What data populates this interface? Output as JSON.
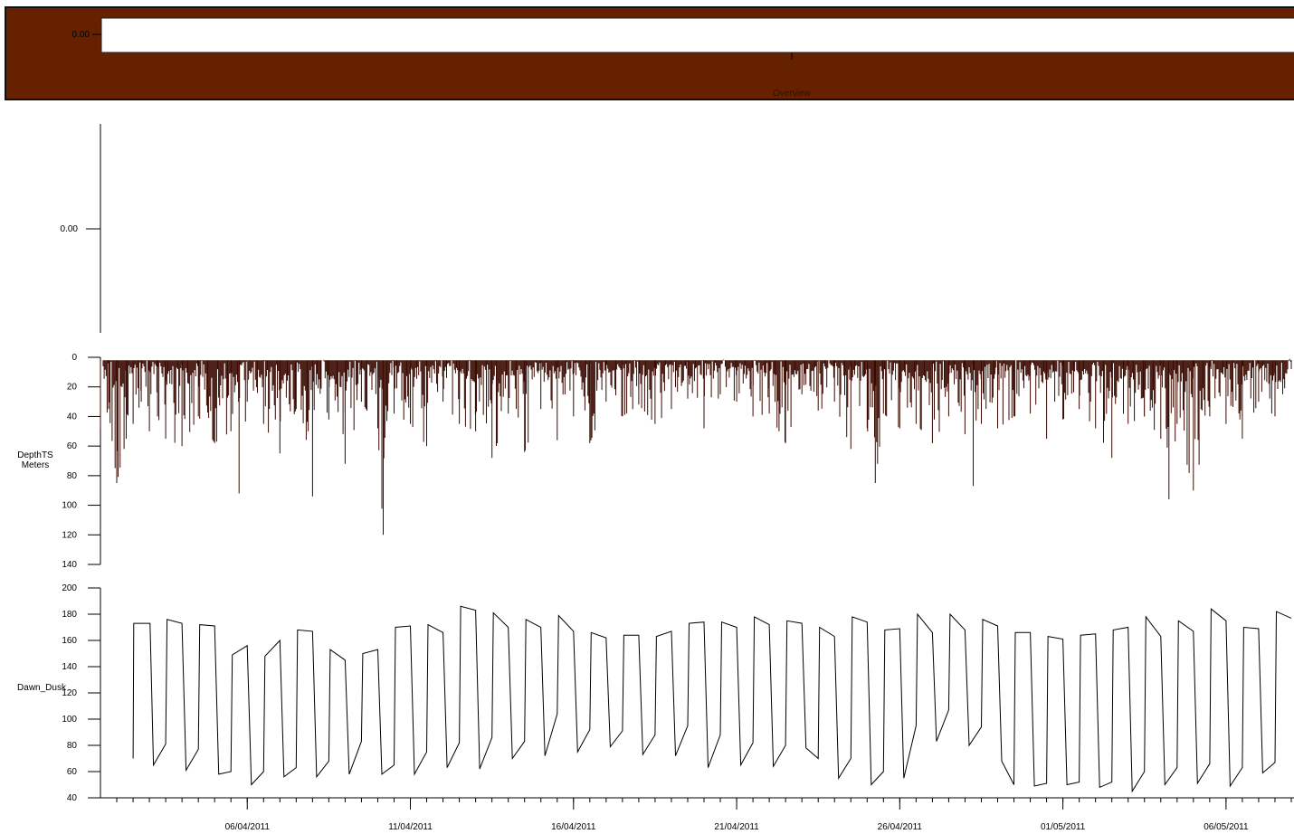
{
  "overview": {
    "title": "Overview",
    "y_tick": "0.00",
    "colors": {
      "band": "#662200",
      "window": "#ffffff",
      "border": "#111111"
    }
  },
  "x_axis": {
    "tick_labels": [
      "06/04/2011",
      "11/04/2011",
      "16/04/2011",
      "21/04/2011",
      "26/04/2011",
      "01/05/2011",
      "06/05/2011"
    ],
    "range": [
      "2011-04-01T12:00",
      "2011-05-08T02:00"
    ]
  },
  "chart_data": [
    {
      "type": "line",
      "name": "empty-panel",
      "y_ticks": [
        "0.00"
      ],
      "ylabel": "",
      "series": []
    },
    {
      "type": "line",
      "name": "DepthTS",
      "ylabel": "DepthTS\nMeters",
      "ylabel_lines": [
        "DepthTS",
        "Meters"
      ],
      "ylim": [
        0,
        140
      ],
      "y_inverted": true,
      "y_ticks": [
        0,
        20,
        40,
        60,
        80,
        100,
        120,
        140
      ],
      "color": "#3a0a00",
      "series": [
        {
          "description": "dense dive-depth trace; sampled envelope of maximum depths",
          "x": [
            "2011-04-01T12:00",
            "2011-04-01T18:00",
            "2011-04-02T00:00",
            "2011-04-02T07:00",
            "2011-04-02T12:00",
            "2011-04-02T18:00",
            "2011-04-03T00:00",
            "2011-04-03T06:00",
            "2011-04-03T12:00",
            "2011-04-04T00:00",
            "2011-04-04T12:00",
            "2011-04-05T00:00",
            "2011-04-05T12:00",
            "2011-04-05T18:00",
            "2011-04-06T00:00",
            "2011-04-06T12:00",
            "2011-04-07T00:00",
            "2011-04-07T12:00",
            "2011-04-08T00:00",
            "2011-04-08T06:00",
            "2011-04-08T12:00",
            "2011-04-09T00:00",
            "2011-04-09T12:00",
            "2011-04-10T00:00",
            "2011-04-10T04:00",
            "2011-04-10T12:00",
            "2011-04-11T00:00",
            "2011-04-11T12:00",
            "2011-04-12T00:00",
            "2011-04-12T12:00",
            "2011-04-13T00:00",
            "2011-04-13T12:00",
            "2011-04-14T00:00",
            "2011-04-14T12:00",
            "2011-04-15T00:00",
            "2011-04-15T12:00",
            "2011-04-16T00:00",
            "2011-04-16T12:00",
            "2011-04-17T00:00",
            "2011-04-17T12:00",
            "2011-04-18T00:00",
            "2011-04-18T12:00",
            "2011-04-19T00:00",
            "2011-04-19T12:00",
            "2011-04-20T00:00",
            "2011-04-20T12:00",
            "2011-04-21T00:00",
            "2011-04-21T12:00",
            "2011-04-22T00:00",
            "2011-04-22T12:00",
            "2011-04-23T00:00",
            "2011-04-23T12:00",
            "2011-04-24T00:00",
            "2011-04-24T12:00",
            "2011-04-25T00:00",
            "2011-04-25T06:00",
            "2011-04-25T12:00",
            "2011-04-26T00:00",
            "2011-04-26T12:00",
            "2011-04-27T00:00",
            "2011-04-27T12:00",
            "2011-04-28T00:00",
            "2011-04-28T06:00",
            "2011-04-28T12:00",
            "2011-04-29T00:00",
            "2011-04-29T12:00",
            "2011-04-30T00:00",
            "2011-04-30T12:00",
            "2011-05-01T00:00",
            "2011-05-01T12:00",
            "2011-05-02T00:00",
            "2011-05-02T12:00",
            "2011-05-03T00:00",
            "2011-05-03T12:00",
            "2011-05-04T00:00",
            "2011-05-04T06:00",
            "2011-05-04T12:00",
            "2011-05-05T00:00",
            "2011-05-05T12:00",
            "2011-05-06T00:00",
            "2011-05-06T12:00",
            "2011-05-07T00:00",
            "2011-05-07T12:00",
            "2011-05-08T00:00"
          ],
          "y": [
            48,
            35,
            85,
            55,
            45,
            30,
            50,
            40,
            55,
            60,
            40,
            58,
            50,
            92,
            30,
            45,
            65,
            35,
            94,
            20,
            42,
            72,
            30,
            48,
            120,
            38,
            45,
            60,
            30,
            45,
            50,
            68,
            38,
            64,
            35,
            56,
            40,
            58,
            30,
            40,
            32,
            45,
            35,
            28,
            48,
            25,
            30,
            40,
            38,
            58,
            25,
            36,
            30,
            62,
            48,
            85,
            38,
            48,
            45,
            58,
            40,
            52,
            87,
            45,
            48,
            40,
            38,
            55,
            42,
            35,
            48,
            68,
            45,
            40,
            55,
            96,
            45,
            90,
            40,
            45,
            55,
            30,
            40,
            8
          ]
        }
      ]
    },
    {
      "type": "line",
      "name": "Dawn_Dusk",
      "ylabel": "Dawn_Dusk",
      "ylim": [
        40,
        200
      ],
      "y_ticks": [
        40,
        60,
        80,
        100,
        120,
        140,
        160,
        180,
        200
      ],
      "color": "#000000",
      "series": [
        {
          "description": "daily sawtooth pattern",
          "x": [
            "2011-04-02T12:00",
            "2011-04-02T12:30",
            "2011-04-03T00:30",
            "2011-04-03T03:00",
            "2011-04-03T12:00",
            "2011-04-03T13:00",
            "2011-04-04T00:00",
            "2011-04-04T03:00",
            "2011-04-04T12:00",
            "2011-04-04T13:00",
            "2011-04-05T00:00",
            "2011-04-05T03:00",
            "2011-04-05T12:00",
            "2011-04-05T13:00",
            "2011-04-06T00:00",
            "2011-04-06T03:00",
            "2011-04-06T12:00",
            "2011-04-06T13:00",
            "2011-04-07T00:00",
            "2011-04-07T03:00",
            "2011-04-07T12:00",
            "2011-04-07T13:00",
            "2011-04-08T00:00",
            "2011-04-08T03:00",
            "2011-04-08T12:00",
            "2011-04-08T13:00",
            "2011-04-09T00:00",
            "2011-04-09T03:00",
            "2011-04-09T12:00",
            "2011-04-09T13:00",
            "2011-04-10T00:00",
            "2011-04-10T03:00",
            "2011-04-10T12:00",
            "2011-04-10T13:00",
            "2011-04-11T00:00",
            "2011-04-11T03:00",
            "2011-04-11T12:00",
            "2011-04-11T13:00",
            "2011-04-12T00:00",
            "2011-04-12T03:00",
            "2011-04-12T12:00",
            "2011-04-12T13:00",
            "2011-04-13T00:00",
            "2011-04-13T03:00",
            "2011-04-13T12:00",
            "2011-04-13T13:00",
            "2011-04-14T00:00",
            "2011-04-14T03:00",
            "2011-04-14T12:00",
            "2011-04-14T13:00",
            "2011-04-15T00:00",
            "2011-04-15T03:00",
            "2011-04-15T12:00",
            "2011-04-15T13:00",
            "2011-04-16T00:00",
            "2011-04-16T03:00",
            "2011-04-16T12:00",
            "2011-04-16T13:00",
            "2011-04-17T00:00",
            "2011-04-17T03:00",
            "2011-04-17T12:00",
            "2011-04-17T13:00",
            "2011-04-18T00:00",
            "2011-04-18T03:00",
            "2011-04-18T12:00",
            "2011-04-18T13:00",
            "2011-04-19T00:00",
            "2011-04-19T03:00",
            "2011-04-19T12:00",
            "2011-04-19T13:00",
            "2011-04-20T00:00",
            "2011-04-20T03:00",
            "2011-04-20T12:00",
            "2011-04-20T13:00",
            "2011-04-21T00:00",
            "2011-04-21T03:00",
            "2011-04-21T12:00",
            "2011-04-21T13:00",
            "2011-04-22T00:00",
            "2011-04-22T03:00",
            "2011-04-22T12:00",
            "2011-04-22T13:00",
            "2011-04-23T00:00",
            "2011-04-23T03:00",
            "2011-04-23T12:00",
            "2011-04-23T13:00",
            "2011-04-24T00:00",
            "2011-04-24T03:00",
            "2011-04-24T12:00",
            "2011-04-24T13:00",
            "2011-04-25T00:00",
            "2011-04-25T03:00",
            "2011-04-25T12:00",
            "2011-04-25T13:00",
            "2011-04-26T00:00",
            "2011-04-26T03:00",
            "2011-04-26T12:00",
            "2011-04-26T13:00",
            "2011-04-27T00:00",
            "2011-04-27T03:00",
            "2011-04-27T12:00",
            "2011-04-27T13:00",
            "2011-04-28T00:00",
            "2011-04-28T03:00",
            "2011-04-28T12:00",
            "2011-04-28T13:00",
            "2011-04-29T00:00",
            "2011-04-29T03:00",
            "2011-04-29T12:00",
            "2011-04-29T13:00",
            "2011-04-30T00:00",
            "2011-04-30T03:00",
            "2011-04-30T12:00",
            "2011-04-30T13:00",
            "2011-05-01T00:00",
            "2011-05-01T03:00",
            "2011-05-01T12:00",
            "2011-05-01T13:00",
            "2011-05-02T00:00",
            "2011-05-02T03:00",
            "2011-05-02T12:00",
            "2011-05-02T13:00",
            "2011-05-03T00:00",
            "2011-05-03T03:00",
            "2011-05-03T12:00",
            "2011-05-03T13:00",
            "2011-05-04T00:00",
            "2011-05-04T03:00",
            "2011-05-04T12:00",
            "2011-05-04T13:00",
            "2011-05-05T00:00",
            "2011-05-05T03:00",
            "2011-05-05T12:00",
            "2011-05-05T13:00",
            "2011-05-06T00:00",
            "2011-05-06T03:00",
            "2011-05-06T12:00",
            "2011-05-06T13:00",
            "2011-05-07T00:00",
            "2011-05-07T03:00",
            "2011-05-07T12:00",
            "2011-05-07T13:00",
            "2011-05-08T00:00"
          ],
          "y": [
            70,
            173,
            173,
            65,
            81,
            176,
            173,
            61,
            77,
            172,
            171,
            58,
            60,
            149,
            156,
            50,
            60,
            148,
            160,
            56,
            63,
            168,
            167,
            56,
            68,
            153,
            145,
            58,
            83,
            150,
            153,
            58,
            65,
            170,
            171,
            58,
            75,
            172,
            166,
            63,
            82,
            186,
            183,
            62,
            86,
            181,
            170,
            70,
            83,
            176,
            170,
            72,
            104,
            179,
            167,
            75,
            92,
            166,
            162,
            79,
            91,
            164,
            164,
            73,
            88,
            163,
            167,
            72,
            95,
            173,
            174,
            63,
            88,
            174,
            170,
            65,
            82,
            178,
            172,
            64,
            80,
            175,
            173,
            78,
            70,
            170,
            163,
            55,
            70,
            178,
            174,
            50,
            60,
            168,
            169,
            55,
            95,
            180,
            166,
            83,
            107,
            180,
            168,
            80,
            94,
            176,
            171,
            68,
            50,
            166,
            166,
            49,
            51,
            163,
            161,
            50,
            52,
            164,
            165,
            48,
            52,
            168,
            170,
            45,
            60,
            178,
            163,
            50,
            63,
            175,
            167,
            51,
            66,
            184,
            175,
            49,
            63,
            170,
            169,
            59,
            67,
            182,
            177
          ]
        }
      ]
    }
  ]
}
